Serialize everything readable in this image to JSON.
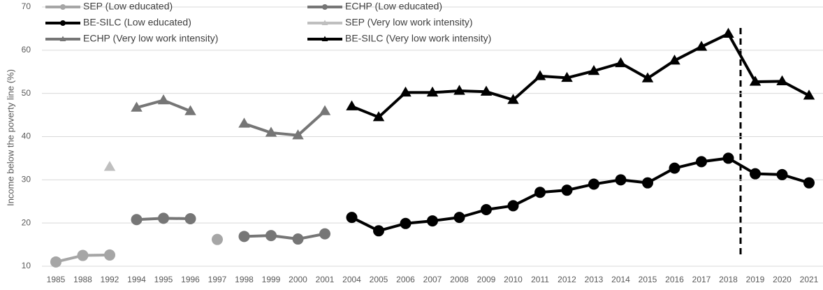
{
  "chart_data": {
    "type": "line",
    "y_label": "Income below the poverty line (%)",
    "categories": [
      "1985",
      "1988",
      "1992",
      "1994",
      "1995",
      "1996",
      "1997",
      "1998",
      "1999",
      "2000",
      "2001",
      "2004",
      "2005",
      "2006",
      "2007",
      "2008",
      "2009",
      "2010",
      "2011",
      "2012",
      "2013",
      "2014",
      "2015",
      "2016",
      "2017",
      "2018",
      "2019",
      "2020",
      "2021"
    ],
    "series": [
      {
        "name": "SEP (Low educated)",
        "color": "#a6a6a6",
        "marker": "circle",
        "values": [
          11,
          12.5,
          12.6,
          null,
          null,
          null,
          16.2,
          null,
          null,
          null,
          null,
          null,
          null,
          null,
          null,
          null,
          null,
          null,
          null,
          null,
          null,
          null,
          null,
          null,
          null,
          null,
          null,
          null,
          null
        ]
      },
      {
        "name": "ECHP (Low educated)",
        "color": "#767676",
        "marker": "circle",
        "values": [
          null,
          null,
          null,
          20.8,
          21.1,
          21,
          null,
          16.9,
          17.1,
          16.3,
          17.5,
          null,
          null,
          null,
          null,
          null,
          null,
          null,
          null,
          null,
          null,
          null,
          null,
          null,
          null,
          null,
          null,
          null,
          null
        ]
      },
      {
        "name": "BE-SILC (Low educated)",
        "color": "#000000",
        "marker": "circle",
        "values": [
          null,
          null,
          null,
          null,
          null,
          null,
          null,
          null,
          null,
          null,
          null,
          21.3,
          18.2,
          19.9,
          20.5,
          21.3,
          23.1,
          24,
          27.1,
          27.6,
          29,
          30,
          29.3,
          32.7,
          34.2,
          35,
          31.4,
          31.2,
          29.3
        ]
      },
      {
        "name": "SEP (Very low work intensity)",
        "color": "#bfbfbf",
        "marker": "triangle",
        "values": [
          null,
          null,
          33,
          null,
          null,
          null,
          null,
          null,
          null,
          null,
          null,
          null,
          null,
          null,
          null,
          null,
          null,
          null,
          null,
          null,
          null,
          null,
          null,
          null,
          null,
          null,
          null,
          null,
          null
        ]
      },
      {
        "name": "ECHP (Very low work intensity)",
        "color": "#767676",
        "marker": "triangle",
        "values": [
          null,
          null,
          null,
          46.7,
          48.4,
          45.9,
          null,
          43,
          40.9,
          40.3,
          45.9,
          null,
          null,
          null,
          null,
          null,
          null,
          null,
          null,
          null,
          null,
          null,
          null,
          null,
          null,
          null,
          null,
          null,
          null
        ]
      },
      {
        "name": "BE-SILC (Very low work intensity)",
        "color": "#000000",
        "marker": "triangle",
        "values": [
          null,
          null,
          null,
          null,
          null,
          null,
          null,
          null,
          null,
          null,
          null,
          47,
          44.5,
          50.2,
          50.2,
          50.6,
          50.4,
          48.5,
          54,
          53.6,
          55.2,
          57,
          53.5,
          57.6,
          60.8,
          63.8,
          52.7,
          52.8,
          49.5
        ]
      }
    ],
    "ylim": [
      10,
      70
    ],
    "yticks": [
      10,
      20,
      30,
      40,
      50,
      60,
      70
    ],
    "grid": true,
    "legend": "top-left"
  }
}
